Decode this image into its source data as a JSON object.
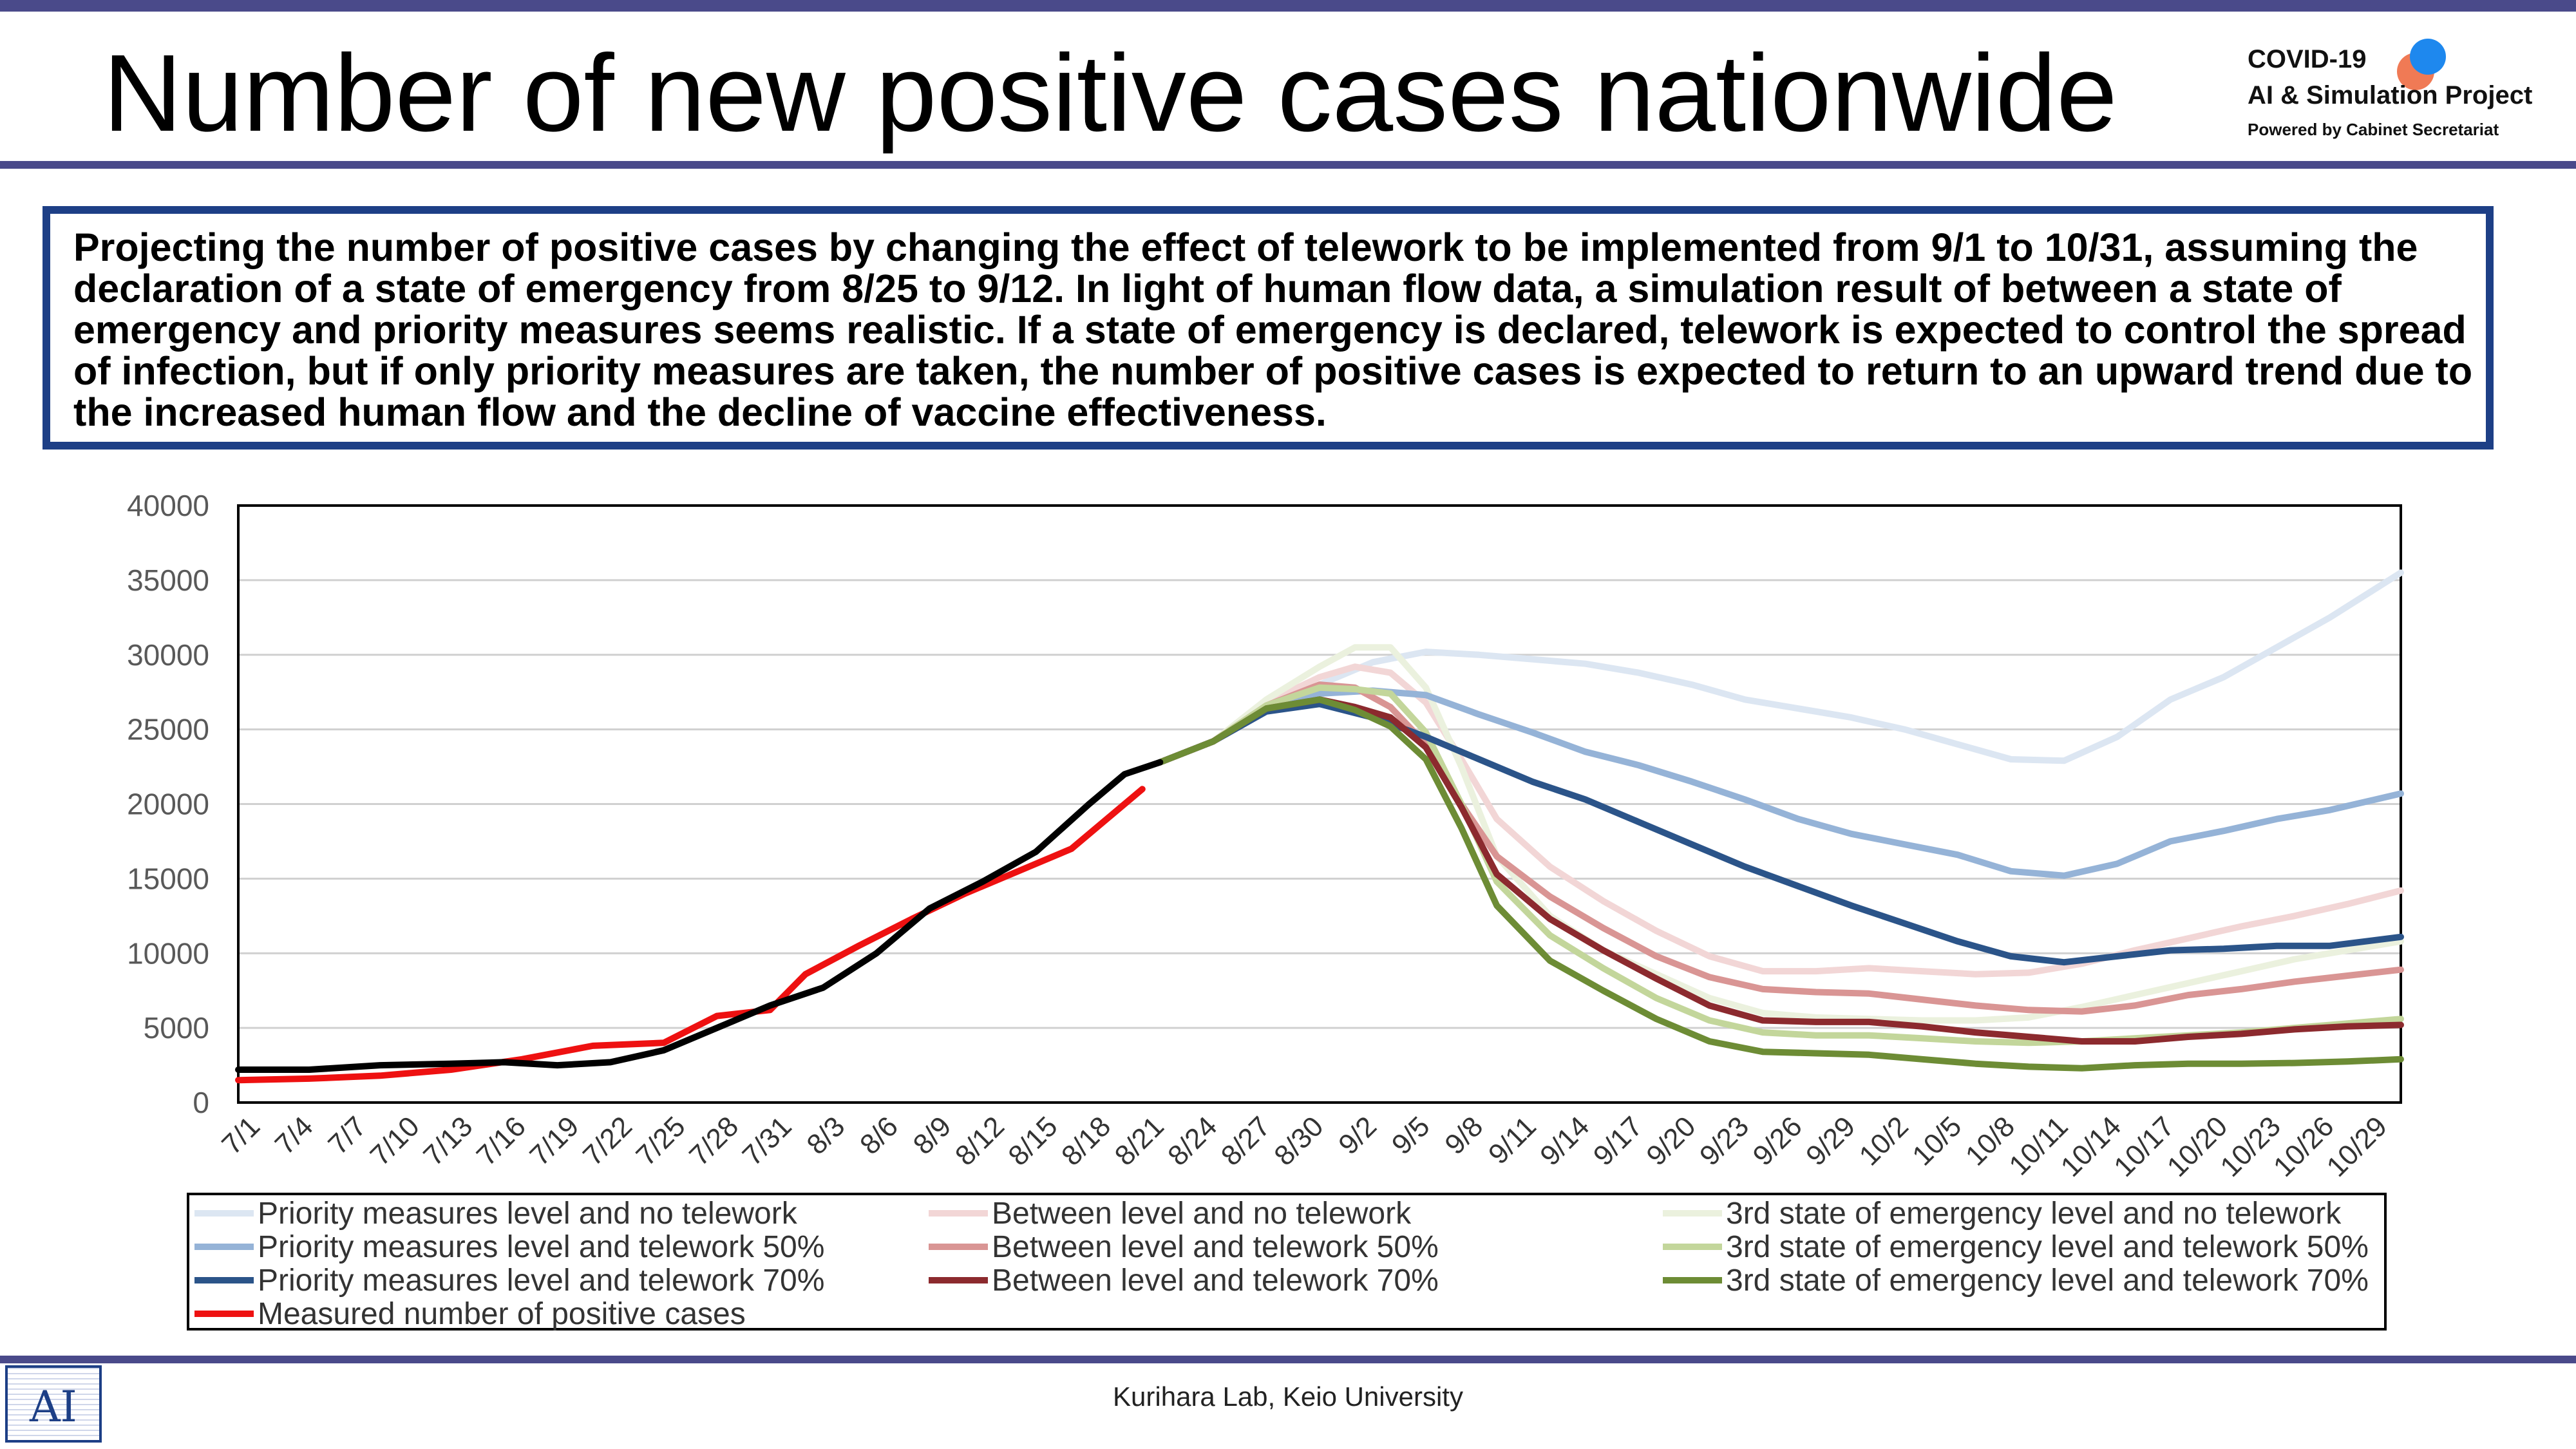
{
  "slide": {
    "title": "Number of new positive cases nationwide",
    "logo": {
      "line1": "COVID-19",
      "line2": "AI & Simulation Project",
      "line3": "Powered by Cabinet Secretariat"
    },
    "note": "Projecting the number of positive cases by changing the effect of telework to be implemented from 9/1 to 10/31, assuming the declaration of a state of emergency from 8/25 to 9/12. In light of human flow data, a simulation result of between a state of emergency and priority measures seems realistic. If a state of emergency is declared, telework is expected to control the spread of infection, but if only priority measures are taken, the number of positive cases is expected to return to an upward trend due to the increased human flow and the decline of vaccine effectiveness.",
    "footer": "Kurihara Lab, Keio University",
    "footer_logo": "AI"
  },
  "chart_data": {
    "type": "line",
    "ylim": [
      0,
      40000
    ],
    "yticks": [
      0,
      5000,
      10000,
      15000,
      20000,
      25000,
      30000,
      35000,
      40000
    ],
    "xlim": [
      "7/1",
      "10/31"
    ],
    "xticks": [
      "7/1",
      "7/4",
      "7/7",
      "7/10",
      "7/13",
      "7/16",
      "7/19",
      "7/22",
      "7/25",
      "7/28",
      "7/31",
      "8/3",
      "8/6",
      "8/9",
      "8/12",
      "8/15",
      "8/18",
      "8/21",
      "8/24",
      "8/27",
      "8/30",
      "9/2",
      "9/5",
      "9/8",
      "9/11",
      "9/14",
      "9/17",
      "9/20",
      "9/23",
      "9/26",
      "9/29",
      "10/2",
      "10/5",
      "10/8",
      "10/11",
      "10/14",
      "10/17",
      "10/20",
      "10/23",
      "10/26",
      "10/29"
    ],
    "grid": "horizontal",
    "legend_position": "bottom",
    "series": [
      {
        "name": "Priority measures level and no telework",
        "color": "#dce6f2",
        "x": [
          "8/22",
          "8/25",
          "8/28",
          "8/31",
          "9/3",
          "9/6",
          "9/9",
          "9/12",
          "9/15",
          "9/18",
          "9/21",
          "9/24",
          "9/27",
          "9/30",
          "10/3",
          "10/6",
          "10/9",
          "10/12",
          "10/15",
          "10/18",
          "10/21",
          "10/24",
          "10/27",
          "10/31"
        ],
        "y": [
          22800,
          24200,
          26500,
          28000,
          29500,
          30200,
          30000,
          29700,
          29400,
          28800,
          28000,
          27000,
          26400,
          25800,
          25000,
          24000,
          23000,
          22900,
          24500,
          27000,
          28500,
          30500,
          32500,
          35500
        ]
      },
      {
        "name": "Between level and no telework",
        "color": "#f2d6d6",
        "x": [
          "8/22",
          "8/25",
          "8/28",
          "8/31",
          "9/2",
          "9/4",
          "9/6",
          "9/8",
          "9/10",
          "9/13",
          "9/16",
          "9/19",
          "9/22",
          "9/25",
          "9/28",
          "10/1",
          "10/4",
          "10/7",
          "10/10",
          "10/13",
          "10/16",
          "10/19",
          "10/22",
          "10/25",
          "10/28",
          "10/31"
        ],
        "y": [
          22800,
          24200,
          26800,
          28500,
          29200,
          28800,
          26800,
          23000,
          19000,
          15800,
          13500,
          11500,
          9800,
          8800,
          8800,
          9000,
          8800,
          8600,
          8700,
          9300,
          10200,
          11000,
          11800,
          12500,
          13300,
          14200
        ]
      },
      {
        "name": "3rd state of emergency level and no telework",
        "color": "#ebf1de",
        "x": [
          "8/22",
          "8/25",
          "8/28",
          "8/31",
          "9/2",
          "9/4",
          "9/6",
          "9/8",
          "9/10",
          "9/13",
          "9/16",
          "9/19",
          "9/22",
          "9/25",
          "9/28",
          "10/1",
          "10/4",
          "10/7",
          "10/10",
          "10/13",
          "10/16",
          "10/19",
          "10/22",
          "10/25",
          "10/28",
          "10/31"
        ],
        "y": [
          22800,
          24200,
          27000,
          29200,
          30500,
          30500,
          27800,
          22500,
          16500,
          12500,
          10200,
          8600,
          7000,
          6000,
          5700,
          5600,
          5500,
          5500,
          5700,
          6400,
          7200,
          8000,
          8800,
          9600,
          10200,
          10800
        ]
      },
      {
        "name": "Priority measures level and telework 50%",
        "color": "#95b3d7",
        "x": [
          "8/22",
          "8/25",
          "8/28",
          "8/31",
          "9/3",
          "9/6",
          "9/9",
          "9/12",
          "9/15",
          "9/18",
          "9/21",
          "9/24",
          "9/27",
          "9/30",
          "10/3",
          "10/6",
          "10/9",
          "10/12",
          "10/15",
          "10/18",
          "10/21",
          "10/24",
          "10/27",
          "10/31"
        ],
        "y": [
          22800,
          24200,
          26400,
          27400,
          27600,
          27300,
          26000,
          24800,
          23500,
          22600,
          21500,
          20300,
          19000,
          18000,
          17300,
          16600,
          15500,
          15200,
          16000,
          17500,
          18200,
          19000,
          19600,
          20700
        ]
      },
      {
        "name": "Between level and telework 50%",
        "color": "#d99594",
        "x": [
          "8/22",
          "8/25",
          "8/28",
          "8/31",
          "9/2",
          "9/4",
          "9/6",
          "9/8",
          "9/10",
          "9/13",
          "9/16",
          "9/19",
          "9/22",
          "9/25",
          "9/28",
          "10/1",
          "10/4",
          "10/7",
          "10/10",
          "10/13",
          "10/16",
          "10/19",
          "10/22",
          "10/25",
          "10/28",
          "10/31"
        ],
        "y": [
          22800,
          24200,
          26600,
          28000,
          27800,
          26500,
          24000,
          20000,
          16500,
          13800,
          11700,
          9800,
          8400,
          7600,
          7400,
          7300,
          6900,
          6500,
          6200,
          6100,
          6500,
          7200,
          7600,
          8100,
          8500,
          8900
        ]
      },
      {
        "name": "3rd state of emergency level and telework 50%",
        "color": "#c3d69b",
        "x": [
          "8/22",
          "8/25",
          "8/28",
          "8/31",
          "9/2",
          "9/4",
          "9/6",
          "9/8",
          "9/10",
          "9/13",
          "9/16",
          "9/19",
          "9/22",
          "9/25",
          "9/28",
          "10/1",
          "10/4",
          "10/7",
          "10/10",
          "10/13",
          "10/16",
          "10/19",
          "10/22",
          "10/25",
          "10/28",
          "10/31"
        ],
        "y": [
          22800,
          24200,
          26600,
          27800,
          27700,
          27400,
          24800,
          20000,
          14800,
          11200,
          9000,
          7000,
          5500,
          4700,
          4500,
          4500,
          4300,
          4100,
          4000,
          4100,
          4300,
          4500,
          4700,
          5000,
          5300,
          5600
        ]
      },
      {
        "name": "Priority measures level and telework 70%",
        "color": "#2b5489",
        "x": [
          "8/22",
          "8/25",
          "8/28",
          "8/31",
          "9/3",
          "9/6",
          "9/9",
          "9/12",
          "9/15",
          "9/18",
          "9/21",
          "9/24",
          "9/27",
          "9/30",
          "10/3",
          "10/6",
          "10/9",
          "10/12",
          "10/15",
          "10/18",
          "10/21",
          "10/24",
          "10/27",
          "10/31"
        ],
        "y": [
          22800,
          24200,
          26200,
          26700,
          25800,
          24500,
          23000,
          21500,
          20300,
          18800,
          17300,
          15800,
          14500,
          13200,
          12000,
          10800,
          9800,
          9400,
          9800,
          10200,
          10300,
          10500,
          10500,
          11100
        ]
      },
      {
        "name": "Between level and telework 70%",
        "color": "#8c2a2e",
        "x": [
          "8/22",
          "8/25",
          "8/28",
          "8/31",
          "9/2",
          "9/4",
          "9/6",
          "9/8",
          "9/10",
          "9/13",
          "9/16",
          "9/19",
          "9/22",
          "9/25",
          "9/28",
          "10/1",
          "10/4",
          "10/7",
          "10/10",
          "10/13",
          "10/16",
          "10/19",
          "10/22",
          "10/25",
          "10/28",
          "10/31"
        ],
        "y": [
          22800,
          24200,
          26400,
          27000,
          26500,
          25800,
          23800,
          19800,
          15300,
          12300,
          10200,
          8300,
          6500,
          5500,
          5400,
          5400,
          5100,
          4700,
          4400,
          4100,
          4100,
          4400,
          4600,
          4900,
          5100,
          5200
        ]
      },
      {
        "name": "3rd state of emergency level and telework 70%",
        "color": "#6d8c35",
        "x": [
          "8/22",
          "8/25",
          "8/28",
          "8/31",
          "9/2",
          "9/4",
          "9/6",
          "9/8",
          "9/10",
          "9/13",
          "9/16",
          "9/19",
          "9/22",
          "9/25",
          "9/28",
          "10/1",
          "10/4",
          "10/7",
          "10/10",
          "10/13",
          "10/16",
          "10/19",
          "10/22",
          "10/25",
          "10/28",
          "10/31"
        ],
        "y": [
          22800,
          24200,
          26400,
          27000,
          26300,
          25200,
          23000,
          18400,
          13200,
          9500,
          7500,
          5600,
          4100,
          3400,
          3300,
          3200,
          2900,
          2600,
          2400,
          2300,
          2500,
          2600,
          2600,
          2650,
          2750,
          2900
        ]
      },
      {
        "name": "Measured number of positive cases",
        "color": "#ee1111",
        "x": [
          "7/1",
          "7/5",
          "7/9",
          "7/13",
          "7/17",
          "7/21",
          "7/25",
          "7/28",
          "7/31",
          "8/2",
          "8/5",
          "8/8",
          "8/11",
          "8/14",
          "8/17",
          "8/19",
          "8/21"
        ],
        "y": [
          1500,
          1600,
          1800,
          2200,
          2900,
          3800,
          4000,
          5800,
          6200,
          8600,
          10500,
          12300,
          14000,
          15500,
          17000,
          19000,
          21000
        ]
      },
      {
        "name": "",
        "color": "#000000",
        "x": [
          "7/1",
          "7/5",
          "7/9",
          "7/13",
          "7/16",
          "7/19",
          "7/22",
          "7/25",
          "7/28",
          "7/31",
          "8/3",
          "8/6",
          "8/9",
          "8/12",
          "8/15",
          "8/18",
          "8/20",
          "8/22"
        ],
        "y": [
          2200,
          2200,
          2500,
          2600,
          2700,
          2500,
          2700,
          3500,
          5000,
          6500,
          7700,
          10000,
          13000,
          14800,
          16800,
          20000,
          22000,
          22800
        ]
      }
    ]
  }
}
